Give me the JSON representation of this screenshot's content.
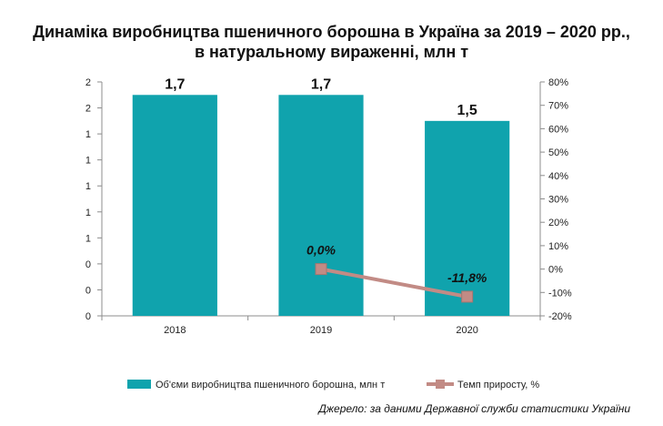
{
  "title_lines": [
    "Динаміка виробництва пшеничного борошна в Україна за 2019 – 2020 рр.,",
    "в натуральному вираженні, млн т"
  ],
  "source": "Джерело: за даними Державної служби статистики України",
  "colors": {
    "bar": "#10a3ad",
    "line": "#c28b85",
    "marker": "#c28b85"
  },
  "chart_data": {
    "type": "bar+line",
    "categories": [
      "2018",
      "2019",
      "2020"
    ],
    "series": [
      {
        "name": "Об'єми виробництва пшеничного борошна, млн т",
        "type": "bar",
        "axis": "left",
        "values": [
          1.7,
          1.7,
          1.5
        ],
        "value_labels": [
          "1,7",
          "1,7",
          "1,5"
        ]
      },
      {
        "name": "Темп приросту, %",
        "type": "line",
        "axis": "right",
        "values": [
          null,
          0.0,
          -11.8
        ],
        "value_labels": [
          "",
          "0,0%",
          "-11,8%"
        ]
      }
    ],
    "left_axis": {
      "range": [
        0,
        1.8
      ],
      "tick_values": [
        0,
        0.2,
        0.4,
        0.6,
        0.8,
        1.0,
        1.2,
        1.4,
        1.6,
        1.8
      ],
      "tick_labels": [
        "0",
        "0",
        "0",
        "1",
        "1",
        "1",
        "1",
        "1",
        "2",
        "2"
      ]
    },
    "right_axis": {
      "range": [
        -20,
        80
      ],
      "tick_values": [
        -20,
        -10,
        0,
        10,
        20,
        30,
        40,
        50,
        60,
        70,
        80
      ],
      "tick_labels": [
        "-20%",
        "-10%",
        "0%",
        "10%",
        "20%",
        "30%",
        "40%",
        "50%",
        "60%",
        "70%",
        "80%"
      ]
    },
    "grid": false,
    "legend": "bottom"
  }
}
